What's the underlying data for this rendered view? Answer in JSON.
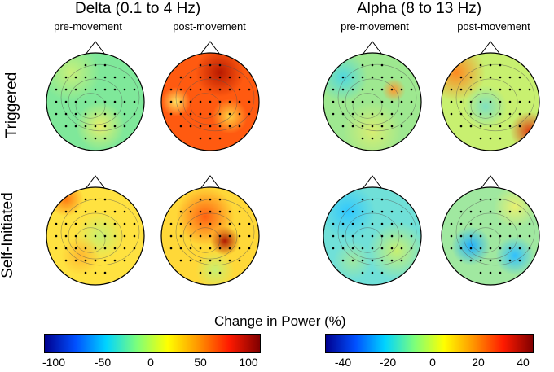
{
  "bands": [
    {
      "title": "Delta (0.1 to 4 Hz)",
      "columns": [
        "pre-movement",
        "post-movement"
      ],
      "colorbar": {
        "ticks": [
          "-100",
          "-50",
          "0",
          "50",
          "100"
        ],
        "min": -100,
        "max": 100
      }
    },
    {
      "title": "Alpha (8 to 13 Hz)",
      "columns": [
        "pre-movement",
        "post-movement"
      ],
      "colorbar": {
        "ticks": [
          "-40",
          "-20",
          "0",
          "20",
          "40"
        ],
        "min": -40,
        "max": 40
      }
    }
  ],
  "rows": [
    "Triggered",
    "Self-Initiated"
  ],
  "colorbar_title": "Change in Power (%)",
  "colormap": [
    "#00008f",
    "#0050ff",
    "#00d4ff",
    "#7dff7a",
    "#ffff00",
    "#ff9400",
    "#ff1a00",
    "#800000"
  ],
  "maps": [
    {
      "id": "delta-triggered-pre",
      "base": "#7fe89a",
      "blobs": [
        [
          "#c8f07a",
          0.25,
          0.2,
          0.3
        ],
        [
          "#e8f06a",
          0.55,
          0.75,
          0.25
        ]
      ]
    },
    {
      "id": "delta-triggered-post",
      "base": "#ff5a10",
      "blobs": [
        [
          "#b81a00",
          0.6,
          0.2,
          0.25
        ],
        [
          "#ffd040",
          0.7,
          0.65,
          0.18
        ],
        [
          "#ffe060",
          0.15,
          0.5,
          0.15
        ]
      ]
    },
    {
      "id": "alpha-triggered-pre",
      "base": "#9ee890",
      "blobs": [
        [
          "#4fd8e0",
          0.2,
          0.25,
          0.25
        ],
        [
          "#ff9a30",
          0.72,
          0.38,
          0.12
        ],
        [
          "#d8ee70",
          0.5,
          0.8,
          0.3
        ]
      ]
    },
    {
      "id": "alpha-triggered-post",
      "base": "#c8f070",
      "blobs": [
        [
          "#ff8a20",
          0.15,
          0.2,
          0.3
        ],
        [
          "#e04010",
          0.9,
          0.8,
          0.2
        ],
        [
          "#7fe0c0",
          0.45,
          0.55,
          0.22
        ]
      ]
    },
    {
      "id": "delta-self-pre",
      "base": "#ffe240",
      "blobs": [
        [
          "#ff7a10",
          0.2,
          0.12,
          0.18
        ],
        [
          "#c8f070",
          0.55,
          0.5,
          0.25
        ],
        [
          "#ffb830",
          0.35,
          0.7,
          0.2
        ]
      ]
    },
    {
      "id": "delta-self-post",
      "base": "#ffd838",
      "blobs": [
        [
          "#b01a00",
          0.65,
          0.55,
          0.15
        ],
        [
          "#ff6010",
          0.45,
          0.3,
          0.3
        ],
        [
          "#c8f070",
          0.55,
          0.85,
          0.2
        ]
      ]
    },
    {
      "id": "alpha-self-pre",
      "base": "#70e0d8",
      "blobs": [
        [
          "#30c8ff",
          0.25,
          0.25,
          0.28
        ],
        [
          "#c8f070",
          0.75,
          0.65,
          0.3
        ],
        [
          "#a0e8a0",
          0.3,
          0.75,
          0.2
        ]
      ]
    },
    {
      "id": "alpha-self-post",
      "base": "#a0e8a0",
      "blobs": [
        [
          "#20b0ff",
          0.3,
          0.6,
          0.2
        ],
        [
          "#30c0ff",
          0.75,
          0.7,
          0.2
        ],
        [
          "#e8f070",
          0.75,
          0.2,
          0.22
        ]
      ]
    }
  ]
}
